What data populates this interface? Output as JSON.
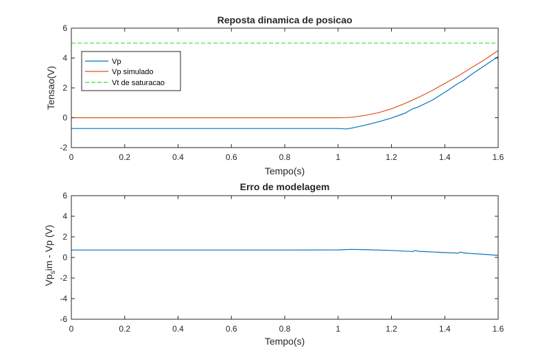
{
  "chart_data": [
    {
      "type": "line",
      "title": "Reposta dinamica de posicao",
      "xlabel": "Tempo(s)",
      "ylabel": "Tensao(V)",
      "xlim": [
        0,
        1.6
      ],
      "ylim": [
        -2,
        6
      ],
      "xticks": [
        "0",
        "0.2",
        "0.4",
        "0.6",
        "0.8",
        "1",
        "1.2",
        "1.4",
        "1.6"
      ],
      "yticks": [
        "-2",
        "0",
        "2",
        "4",
        "6"
      ],
      "grid": false,
      "legend_position": "top-left",
      "series": [
        {
          "name": "Vp",
          "color": "#0072BD",
          "style": "solid",
          "x": [
            0,
            0.2,
            0.4,
            0.6,
            0.8,
            1.0,
            1.03,
            1.05,
            1.1,
            1.15,
            1.2,
            1.25,
            1.28,
            1.3,
            1.35,
            1.4,
            1.45,
            1.47,
            1.5,
            1.55,
            1.6
          ],
          "y": [
            -0.72,
            -0.72,
            -0.72,
            -0.72,
            -0.72,
            -0.72,
            -0.75,
            -0.7,
            -0.5,
            -0.28,
            -0.02,
            0.3,
            0.6,
            0.72,
            1.15,
            1.7,
            2.3,
            2.5,
            2.9,
            3.5,
            4.1
          ]
        },
        {
          "name": "Vp simulado",
          "color": "#D95319",
          "style": "solid",
          "x": [
            0,
            0.2,
            0.4,
            0.6,
            0.8,
            1.0,
            1.03,
            1.05,
            1.1,
            1.15,
            1.2,
            1.25,
            1.3,
            1.35,
            1.4,
            1.45,
            1.5,
            1.55,
            1.6
          ],
          "y": [
            0,
            0,
            0,
            0,
            0,
            0,
            0.01,
            0.03,
            0.15,
            0.33,
            0.6,
            0.95,
            1.35,
            1.8,
            2.3,
            2.8,
            3.35,
            3.9,
            4.5
          ]
        },
        {
          "name": "Vt de saturacao",
          "color": "#33DD33",
          "style": "dashed",
          "x": [
            0,
            1.6
          ],
          "y": [
            5,
            5
          ]
        }
      ]
    },
    {
      "type": "line",
      "title": "Erro de modelagem",
      "xlabel": "Tempo(s)",
      "ylabel_main": "Vp",
      "ylabel_sub": "s",
      "ylabel_rest": "im - Vp (V)",
      "xlim": [
        0,
        1.6
      ],
      "ylim": [
        -6,
        6
      ],
      "xticks": [
        "0",
        "0.2",
        "0.4",
        "0.6",
        "0.8",
        "1",
        "1.2",
        "1.4",
        "1.6"
      ],
      "yticks": [
        "-6",
        "-4",
        "-2",
        "0",
        "2",
        "4",
        "6"
      ],
      "grid": false,
      "series": [
        {
          "color": "#0072BD",
          "style": "solid",
          "x": [
            0,
            0.2,
            0.4,
            0.6,
            0.8,
            1.0,
            1.05,
            1.1,
            1.2,
            1.28,
            1.29,
            1.3,
            1.4,
            1.45,
            1.46,
            1.47,
            1.5,
            1.55,
            1.6
          ],
          "y": [
            0.72,
            0.72,
            0.72,
            0.72,
            0.72,
            0.73,
            0.78,
            0.76,
            0.68,
            0.58,
            0.68,
            0.6,
            0.47,
            0.42,
            0.52,
            0.44,
            0.38,
            0.3,
            0.2
          ]
        }
      ]
    }
  ]
}
